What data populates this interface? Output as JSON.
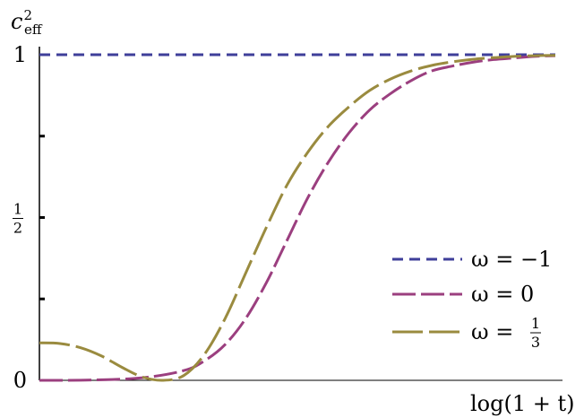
{
  "chart_data": {
    "type": "line",
    "ylabel": "c²eff",
    "xlabel": "log(1 + t)",
    "xlim": [
      0,
      1
    ],
    "ylim": [
      0,
      1
    ],
    "yticks": [
      {
        "value": 0,
        "label": "0"
      },
      {
        "value": 0.25,
        "label": ""
      },
      {
        "value": 0.5,
        "label": "1/2"
      },
      {
        "value": 0.75,
        "label": ""
      },
      {
        "value": 1,
        "label": "1"
      }
    ],
    "legend_position": "right",
    "grid": false,
    "series": [
      {
        "name": "ω = −1",
        "color": "#3f3f9a",
        "dash": "short",
        "x": [
          0,
          1
        ],
        "y": [
          1,
          1
        ]
      },
      {
        "name": "ω = 0",
        "color": "#9b3f7f",
        "dash": "medium",
        "x": [
          0,
          0.1,
          0.2,
          0.28,
          0.32,
          0.36,
          0.4,
          0.44,
          0.48,
          0.52,
          0.56,
          0.6,
          0.64,
          0.68,
          0.72,
          0.76,
          0.8,
          0.84,
          0.88,
          0.92,
          0.96,
          1.0
        ],
        "y": [
          0,
          0.001,
          0.008,
          0.03,
          0.06,
          0.11,
          0.19,
          0.3,
          0.43,
          0.56,
          0.67,
          0.76,
          0.83,
          0.88,
          0.92,
          0.95,
          0.965,
          0.977,
          0.985,
          0.99,
          0.995,
          0.997
        ]
      },
      {
        "name": "ω = 1/3",
        "color": "#9a8b3f",
        "dash": "long",
        "x": [
          0,
          0.04,
          0.08,
          0.12,
          0.16,
          0.2,
          0.24,
          0.28,
          0.32,
          0.36,
          0.4,
          0.44,
          0.48,
          0.52,
          0.56,
          0.6,
          0.64,
          0.68,
          0.72,
          0.76,
          0.8,
          0.84,
          0.88,
          0.92,
          0.96,
          1.0
        ],
        "y": [
          0.115,
          0.113,
          0.1,
          0.075,
          0.04,
          0.01,
          0.0,
          0.015,
          0.08,
          0.19,
          0.33,
          0.47,
          0.6,
          0.7,
          0.78,
          0.84,
          0.89,
          0.925,
          0.95,
          0.967,
          0.978,
          0.986,
          0.991,
          0.995,
          0.997,
          0.998
        ]
      }
    ]
  }
}
